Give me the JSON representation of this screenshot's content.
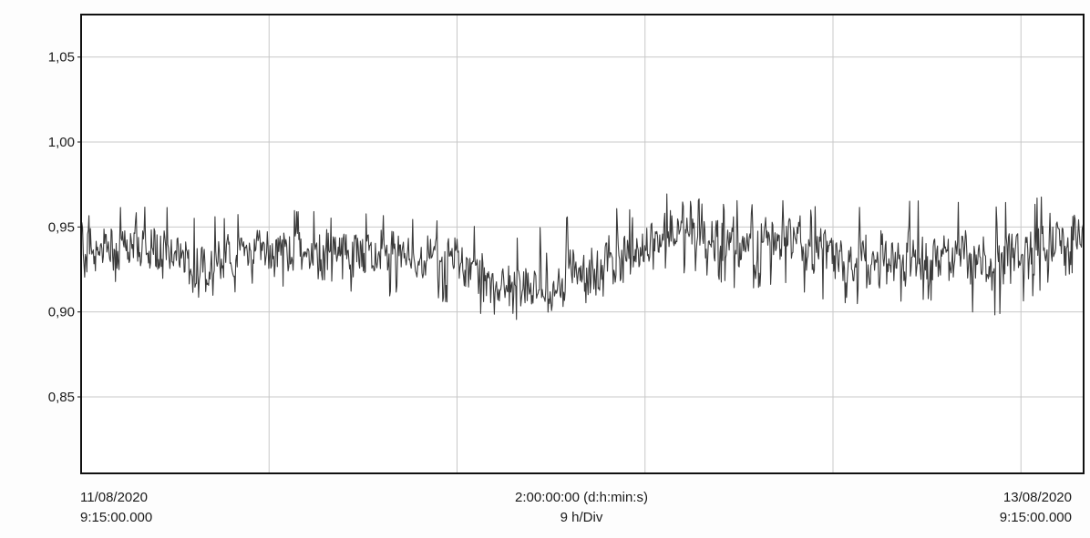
{
  "chart_data": {
    "type": "line",
    "grid": true,
    "ylim": [
      0.805,
      1.075
    ],
    "yticks": [
      {
        "value": 1.05,
        "label": "1,05"
      },
      {
        "value": 1.0,
        "label": "1,00"
      },
      {
        "value": 0.95,
        "label": "0,95"
      },
      {
        "value": 0.9,
        "label": "0,90"
      },
      {
        "value": 0.85,
        "label": "0,85"
      }
    ],
    "x_start": {
      "date": "11/08/2020",
      "time": "9:15:00.000"
    },
    "x_end": {
      "date": "13/08/2020",
      "time": "9:15:00.000"
    },
    "x_center": {
      "duration": "2:00:00:00 (d:h:min:s)",
      "division": "9 h/Div"
    },
    "series": [
      {
        "color": "#3a3a3a",
        "x_hours": [
          0,
          2,
          4,
          6,
          8,
          10,
          12,
          14,
          16,
          18,
          20,
          22,
          24,
          26,
          28,
          30,
          32,
          34,
          36,
          38,
          40,
          42,
          44,
          46,
          48
        ],
        "mean": [
          0.94,
          0.937,
          0.935,
          0.925,
          0.937,
          0.936,
          0.932,
          0.935,
          0.932,
          0.93,
          0.914,
          0.91,
          0.925,
          0.932,
          0.948,
          0.942,
          0.938,
          0.946,
          0.932,
          0.93,
          0.936,
          0.934,
          0.93,
          0.937,
          0.944
        ],
        "max": [
          0.965,
          0.963,
          0.962,
          0.955,
          0.963,
          0.962,
          0.958,
          0.96,
          0.958,
          0.956,
          0.945,
          0.95,
          0.963,
          0.962,
          0.97,
          0.966,
          0.968,
          0.965,
          0.962,
          0.962,
          0.966,
          0.966,
          0.964,
          0.968,
          0.975
        ],
        "min": [
          0.918,
          0.915,
          0.912,
          0.907,
          0.913,
          0.913,
          0.907,
          0.91,
          0.906,
          0.904,
          0.894,
          0.896,
          0.902,
          0.914,
          0.925,
          0.92,
          0.911,
          0.915,
          0.904,
          0.9,
          0.906,
          0.9,
          0.898,
          0.912,
          0.925
        ]
      }
    ]
  }
}
